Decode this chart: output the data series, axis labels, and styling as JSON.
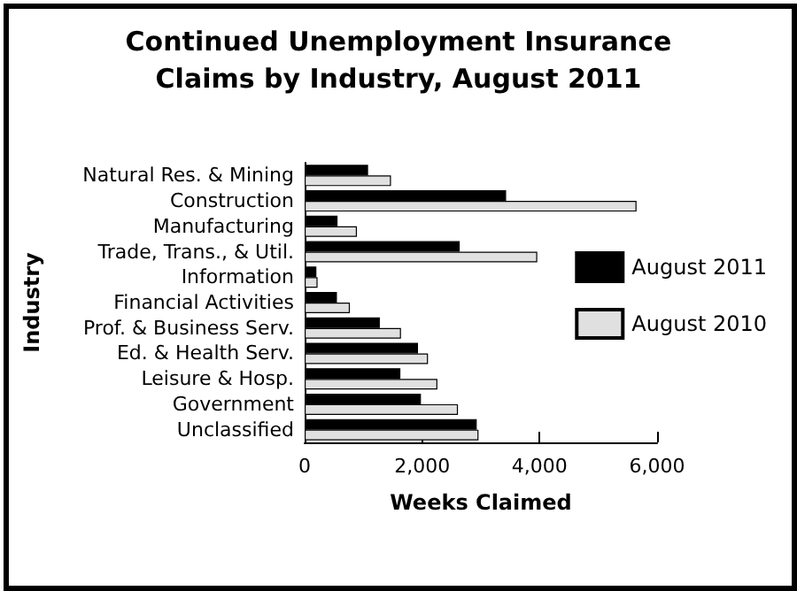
{
  "chart_data": {
    "type": "bar",
    "orientation": "horizontal",
    "title": "Continued Unemployment Insurance\nClaims by Industry, August 2011",
    "xlabel": "Weeks Claimed",
    "ylabel": "Industry",
    "categories": [
      "Natural Res. & Mining",
      "Construction",
      "Manufacturing",
      "Trade, Trans., & Util.",
      "Information",
      "Financial Activities",
      "Prof. & Business Serv.",
      "Ed. & Health Serv.",
      "Leisure & Hosp.",
      "Government",
      "Unclassified"
    ],
    "series": [
      {
        "name": "August 2011",
        "color": "#000000",
        "values": [
          1080,
          3430,
          560,
          2640,
          200,
          550,
          1280,
          1930,
          1630,
          1980,
          2930
        ]
      },
      {
        "name": "August 2010",
        "color": "#e0e0e0",
        "values": [
          1470,
          5650,
          890,
          3960,
          220,
          770,
          1640,
          2100,
          2260,
          2610,
          2960
        ]
      }
    ],
    "xlim": [
      0,
      6000
    ],
    "xticks": [
      0,
      {
        "value": 2000,
        "label": "2,000"
      },
      {
        "value": 4000,
        "label": "4,000"
      },
      {
        "value": 6000,
        "label": "6,000"
      }
    ],
    "grid": false,
    "legend": "right"
  }
}
